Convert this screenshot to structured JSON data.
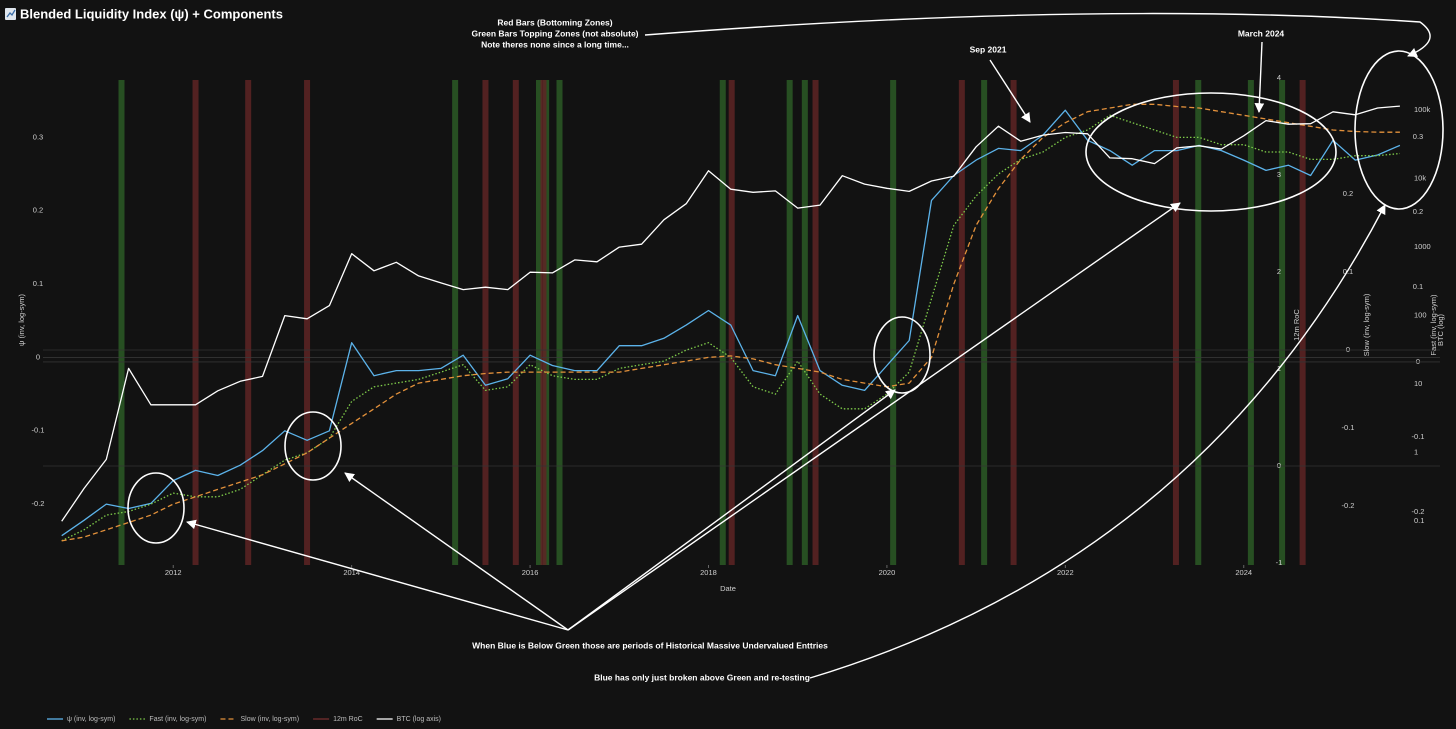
{
  "chart_data": {
    "type": "line",
    "title": "Blended Liquidity Index (ψ) + Components",
    "x_label": "Date",
    "y_label": "ψ (inv, log-sym)",
    "y2_label": "BTC (log)",
    "y2_log": true,
    "xlim": [
      2010.54,
      2026.2
    ],
    "xticks": [
      2012,
      2014,
      2016,
      2018,
      2020,
      2022,
      2024
    ],
    "ylim": [
      -0.283,
      0.385
    ],
    "yticks": [
      -0.2,
      -0.1,
      0,
      0.1,
      0.2,
      0.3
    ],
    "y2lim": [
      0.023,
      324000
    ],
    "y2ticks": [
      0.1,
      1,
      10,
      100,
      1000,
      {
        "value": 10000,
        "label": "10k"
      },
      {
        "value": 100000,
        "label": "100k"
      }
    ],
    "extra_axes": [
      {
        "label": "12m RoC",
        "lim": [
          -1.02,
          4.03
        ],
        "ticks": [
          -1,
          0,
          1,
          2,
          3,
          4
        ]
      },
      {
        "label": "Slow (inv, log-sym)",
        "lim": [
          -0.276,
          0.353
        ],
        "ticks": [
          -0.2,
          -0.1,
          0,
          0.1,
          0.2
        ]
      },
      {
        "label": "Fast (inv, log-sym)",
        "lim": [
          -0.271,
          0.383
        ],
        "ticks": [
          -0.2,
          -0.1,
          0,
          0.1,
          0.2,
          0.3
        ]
      }
    ],
    "x": [
      2010.75,
      2011,
      2011.25,
      2011.5,
      2011.75,
      2012,
      2012.25,
      2012.5,
      2012.75,
      2013,
      2013.25,
      2013.5,
      2013.75,
      2014,
      2014.25,
      2014.5,
      2014.75,
      2015,
      2015.25,
      2015.5,
      2015.75,
      2016,
      2016.25,
      2016.5,
      2016.75,
      2017,
      2017.25,
      2017.5,
      2017.75,
      2018,
      2018.25,
      2018.5,
      2018.75,
      2019,
      2019.25,
      2019.5,
      2019.75,
      2020,
      2020.25,
      2020.5,
      2020.75,
      2021,
      2021.25,
      2021.5,
      2021.75,
      2022,
      2022.25,
      2022.5,
      2022.75,
      2023,
      2023.25,
      2023.5,
      2023.75,
      2024,
      2024.25,
      2024.5,
      2024.75,
      2025,
      2025.25,
      2025.5,
      2025.75
    ],
    "series": [
      {
        "name": "ψ (inv, log-sym)",
        "color": "#5cb3ea",
        "dash": "solid",
        "axis": "y",
        "values": [
          -0.243,
          -0.222,
          -0.2,
          -0.206,
          -0.199,
          -0.168,
          -0.154,
          -0.161,
          -0.147,
          -0.127,
          -0.1,
          -0.113,
          -0.1,
          0.02,
          -0.025,
          -0.018,
          -0.018,
          -0.015,
          0.003,
          -0.038,
          -0.029,
          0.003,
          -0.011,
          -0.018,
          -0.018,
          0.016,
          0.016,
          0.026,
          0.044,
          0.064,
          0.044,
          -0.018,
          -0.025,
          0.057,
          -0.018,
          -0.038,
          -0.045,
          -0.011,
          0.023,
          0.214,
          0.248,
          0.269,
          0.285,
          0.282,
          0.303,
          0.337,
          0.296,
          0.282,
          0.262,
          0.282,
          0.282,
          0.289,
          0.282,
          0.269,
          0.255,
          0.262,
          0.248,
          0.296,
          0.269,
          0.276,
          0.289
        ]
      },
      {
        "name": "Fast (inv, log-sym)",
        "color": "#7fcc4a",
        "dash": "dotted",
        "axis": "y",
        "values": [
          -0.25,
          -0.235,
          -0.215,
          -0.21,
          -0.2,
          -0.185,
          -0.19,
          -0.19,
          -0.18,
          -0.16,
          -0.14,
          -0.13,
          -0.11,
          -0.06,
          -0.04,
          -0.035,
          -0.03,
          -0.02,
          -0.01,
          -0.045,
          -0.04,
          -0.01,
          -0.025,
          -0.03,
          -0.03,
          -0.015,
          -0.01,
          -0.005,
          0.01,
          0.02,
          0,
          -0.04,
          -0.05,
          -0.005,
          -0.05,
          -0.07,
          -0.07,
          -0.05,
          -0.02,
          0.08,
          0.18,
          0.22,
          0.25,
          0.27,
          0.28,
          0.3,
          0.31,
          0.33,
          0.32,
          0.31,
          0.3,
          0.3,
          0.29,
          0.29,
          0.28,
          0.28,
          0.27,
          0.27,
          0.275,
          0.275,
          0.278
        ]
      },
      {
        "name": "Slow (inv, log-sym)",
        "color": "#e3913b",
        "dash": "dashed",
        "axis": "y",
        "values": [
          -0.25,
          -0.245,
          -0.235,
          -0.225,
          -0.215,
          -0.2,
          -0.19,
          -0.18,
          -0.17,
          -0.16,
          -0.145,
          -0.13,
          -0.11,
          -0.09,
          -0.07,
          -0.05,
          -0.035,
          -0.03,
          -0.025,
          -0.022,
          -0.02,
          -0.02,
          -0.02,
          -0.02,
          -0.02,
          -0.02,
          -0.015,
          -0.01,
          -0.005,
          0,
          0.002,
          -0.002,
          -0.01,
          -0.015,
          -0.02,
          -0.03,
          -0.035,
          -0.04,
          -0.035,
          0,
          0.1,
          0.18,
          0.23,
          0.27,
          0.3,
          0.32,
          0.335,
          0.34,
          0.345,
          0.345,
          0.342,
          0.34,
          0.335,
          0.33,
          0.325,
          0.32,
          0.315,
          0.31,
          0.308,
          0.307,
          0.307
        ]
      },
      {
        "name": "12m RoC",
        "color": "#7a3030",
        "dash": "solid"
      },
      {
        "name": "BTC (log axis)",
        "color": "#ffffff",
        "dash": "solid",
        "axis": "y2",
        "values": [
          0.1,
          0.3,
          0.8,
          17,
          5,
          5,
          5,
          8,
          11,
          13,
          100,
          90,
          140,
          800,
          450,
          600,
          380,
          300,
          240,
          260,
          240,
          430,
          420,
          650,
          610,
          1000,
          1100,
          2500,
          4300,
          13000,
          7000,
          6300,
          6600,
          3700,
          4100,
          11000,
          8300,
          7200,
          6500,
          9200,
          10800,
          29000,
          58000,
          35000,
          43000,
          47000,
          45000,
          20000,
          19500,
          16500,
          28000,
          30000,
          27000,
          42000,
          70000,
          62000,
          63000,
          94000,
          85000,
          107000,
          114000
        ]
      }
    ],
    "top_zones": {
      "color": "#2c5a26",
      "x": [
        2011.42,
        2015.16,
        2016.1,
        2016.18,
        2016.33,
        2018.16,
        2018.91,
        2019.08,
        2020.07,
        2021.09,
        2023.49,
        2024.08,
        2024.43
      ]
    },
    "bottom_zones": {
      "color": "#5e2424",
      "x": [
        2012.25,
        2012.84,
        2013.5,
        2015.5,
        2015.84,
        2016.15,
        2018.26,
        2019.2,
        2020.84,
        2021.42,
        2023.24,
        2024.66
      ]
    },
    "annotations": [
      "Red Bars (Bottoming Zones)",
      "Green Bars Topping Zones (not absolute)",
      "Note theres none since a long time...",
      "Sep 2021",
      "March 2024",
      "When Blue is Below Green those are periods of Historical Massive Undervalued Enttries",
      "Blue has only just broken above Green and re-testing"
    ]
  }
}
